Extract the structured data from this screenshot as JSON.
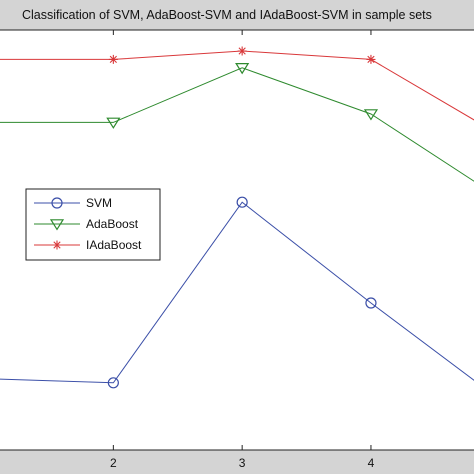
{
  "chart_data": {
    "type": "line",
    "title": "Classification of SVM, AdaBoost-SVM and IAdaBoost-SVM in sample sets",
    "xlabel": "",
    "ylabel": "",
    "x": [
      1,
      2,
      3,
      4,
      5
    ],
    "x_ticks": [
      2,
      3,
      4
    ],
    "xlim": [
      1.12,
      4.8
    ],
    "ylim": [
      0,
      10
    ],
    "series": [
      {
        "name": "SVM",
        "color": "#3b4fa8",
        "marker": "circle",
        "values": [
          1.7,
          1.6,
          5.9,
          3.5,
          1.2
        ]
      },
      {
        "name": "AdaBoost",
        "color": "#2e8a2e",
        "marker": "triangle-down",
        "values": [
          7.8,
          7.8,
          9.1,
          8.0,
          6.0
        ]
      },
      {
        "name": "IAdaBoost",
        "color": "#d9383a",
        "marker": "star",
        "values": [
          9.3,
          9.3,
          9.5,
          9.3,
          7.5
        ]
      }
    ],
    "grid": false,
    "legend_position": "center-left"
  }
}
